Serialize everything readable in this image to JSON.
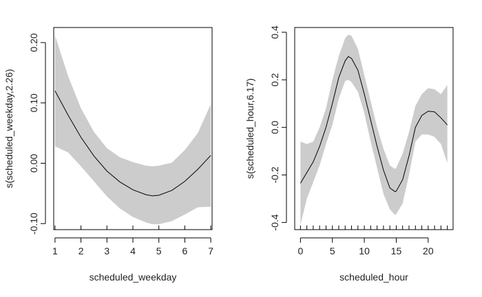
{
  "chart_data": [
    {
      "type": "line",
      "xlabel": "scheduled_weekday",
      "ylabel": "s(scheduled_weekday,2.26)",
      "xlim": [
        0.95,
        7.05
      ],
      "ylim": [
        -0.11,
        0.225
      ],
      "x_ticks": [
        1,
        2,
        3,
        4,
        5,
        6,
        7
      ],
      "x_tick_labels": [
        "1",
        "2",
        "3",
        "4",
        "5",
        "6",
        "7"
      ],
      "y_ticks": [
        -0.1,
        0.0,
        0.1,
        0.2
      ],
      "y_tick_labels": [
        "-0.10",
        "0.00",
        "0.10",
        "0.20"
      ],
      "rug": [
        1,
        2,
        3,
        4,
        5,
        6,
        7
      ],
      "series": [
        {
          "x": [
            1,
            1.5,
            2,
            2.5,
            3,
            3.5,
            4,
            4.5,
            4.75,
            5,
            5.5,
            6,
            6.5,
            7
          ],
          "values": [
            0.12,
            0.08,
            0.043,
            0.012,
            -0.013,
            -0.031,
            -0.044,
            -0.052,
            -0.054,
            -0.053,
            -0.045,
            -0.03,
            -0.01,
            0.013
          ],
          "lower": [
            0.028,
            0.018,
            -0.005,
            -0.03,
            -0.055,
            -0.075,
            -0.089,
            -0.098,
            -0.101,
            -0.101,
            -0.096,
            -0.085,
            -0.073,
            -0.072
          ],
          "upper": [
            0.212,
            0.145,
            0.091,
            0.052,
            0.025,
            0.01,
            0.002,
            -0.004,
            -0.005,
            -0.004,
            0.001,
            0.022,
            0.05,
            0.098
          ]
        }
      ],
      "colors": {
        "band": "#cccccc",
        "line": "#000000",
        "axis": "#000000"
      }
    },
    {
      "type": "line",
      "xlabel": "scheduled_hour",
      "ylabel": "s(scheduled_hour,6.17)",
      "xlim": [
        -0.9,
        23.9
      ],
      "ylim": [
        -0.43,
        0.42
      ],
      "x_ticks": [
        0,
        5,
        10,
        15,
        20
      ],
      "x_tick_labels": [
        "0",
        "5",
        "10",
        "15",
        "20"
      ],
      "y_ticks": [
        -0.4,
        -0.2,
        0.0,
        0.2,
        0.4
      ],
      "y_tick_labels": [
        "-0.4",
        "-0.2",
        "0.0",
        "0.2",
        "0.4"
      ],
      "rug": [
        0,
        1,
        2,
        3,
        4,
        5,
        6,
        7,
        8,
        9,
        10,
        11,
        12,
        13,
        14,
        15,
        16,
        17,
        18,
        19,
        20,
        21,
        22,
        23
      ],
      "series": [
        {
          "x": [
            0,
            1,
            2,
            3,
            4,
            5,
            6,
            7,
            7.5,
            8,
            9,
            10,
            11,
            12,
            13,
            14,
            14.8,
            15,
            16,
            17,
            18,
            19,
            20,
            21,
            22,
            23
          ],
          "values": [
            -0.235,
            -0.19,
            -0.145,
            -0.08,
            0.0,
            0.1,
            0.21,
            0.28,
            0.298,
            0.29,
            0.24,
            0.14,
            0.03,
            -0.08,
            -0.18,
            -0.255,
            -0.27,
            -0.268,
            -0.22,
            -0.12,
            0.0,
            0.05,
            0.068,
            0.065,
            0.04,
            0.01
          ],
          "lower": [
            -0.41,
            -0.3,
            -0.23,
            -0.16,
            -0.07,
            0.01,
            0.12,
            0.195,
            0.2,
            0.19,
            0.15,
            0.06,
            -0.06,
            -0.17,
            -0.28,
            -0.345,
            -0.368,
            -0.365,
            -0.32,
            -0.2,
            -0.06,
            -0.03,
            -0.03,
            -0.04,
            -0.07,
            -0.15
          ],
          "upper": [
            -0.06,
            -0.07,
            -0.06,
            0.0,
            0.08,
            0.2,
            0.3,
            0.375,
            0.39,
            0.385,
            0.33,
            0.22,
            0.11,
            0.0,
            -0.09,
            -0.16,
            -0.175,
            -0.17,
            -0.11,
            -0.02,
            0.09,
            0.14,
            0.165,
            0.16,
            0.14,
            0.178
          ]
        }
      ],
      "colors": {
        "band": "#cccccc",
        "line": "#000000",
        "axis": "#000000"
      }
    }
  ]
}
